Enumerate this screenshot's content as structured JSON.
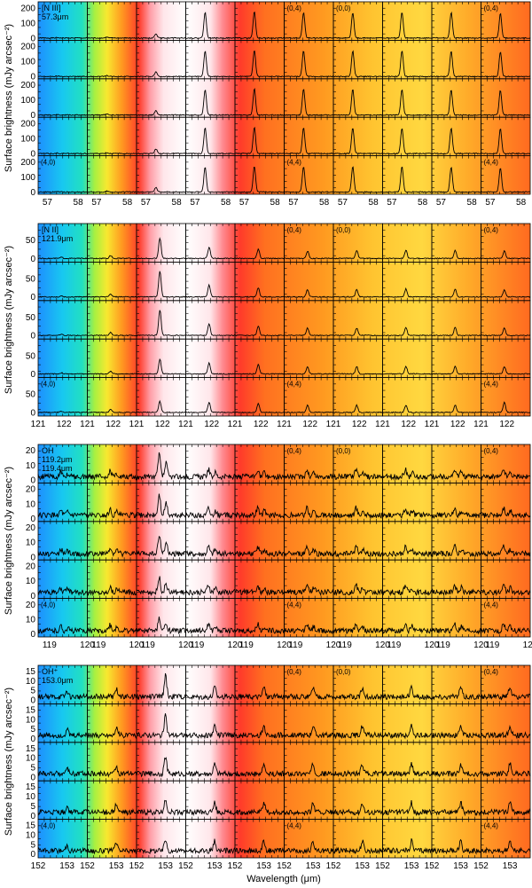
{
  "figure": {
    "ylabel": "Surface brightness (mJy arcsec⁻²)",
    "xlabel": "Wavelength (μm)",
    "grid_rows": 5,
    "grid_cols": 10,
    "spaxel_labels": {
      "r0c5": "(0,4)",
      "r0c6": "(0,0)",
      "r0c9": "(0,4)",
      "r4c0": "(4,0)",
      "r4c5": "(4,4)",
      "r4c9": "(4,4)"
    },
    "colormap": "rainbow background (blue-cyan at left, white-pink highlight near column 3, orange-yellow elsewhere)"
  },
  "chart_data": [
    {
      "type": "line",
      "line_label": "[N III]",
      "wavelength_label": "57.3μm",
      "line_center": 57.33,
      "xlim": [
        56.7,
        58.3
      ],
      "xticks": [
        57,
        58
      ],
      "ylim": [
        -15,
        240
      ],
      "yticks": [
        0,
        100,
        200
      ],
      "peak_values": [
        [
          3,
          6,
          30,
          170,
          175,
          170,
          168,
          172,
          170,
          165
        ],
        [
          3,
          6,
          30,
          170,
          175,
          172,
          170,
          170,
          168,
          165
        ],
        [
          3,
          6,
          30,
          170,
          175,
          172,
          170,
          170,
          168,
          165
        ],
        [
          3,
          6,
          30,
          170,
          175,
          172,
          170,
          170,
          168,
          165
        ],
        [
          3,
          6,
          30,
          165,
          170,
          170,
          168,
          168,
          166,
          160
        ]
      ]
    },
    {
      "type": "line",
      "line_label": "[N II]",
      "wavelength_label": "121.9μm",
      "line_center": 121.9,
      "xlim": [
        121.0,
        122.9
      ],
      "xticks": [
        121,
        122
      ],
      "ylim": [
        -10,
        95
      ],
      "yticks": [
        0,
        50
      ],
      "peak_values": [
        [
          3,
          8,
          55,
          30,
          25,
          20,
          22,
          22,
          22,
          20
        ],
        [
          3,
          8,
          70,
          32,
          25,
          20,
          20,
          22,
          22,
          20
        ],
        [
          3,
          8,
          70,
          32,
          25,
          20,
          20,
          22,
          22,
          20
        ],
        [
          3,
          8,
          40,
          30,
          25,
          20,
          20,
          20,
          20,
          20
        ],
        [
          3,
          8,
          30,
          28,
          25,
          20,
          20,
          20,
          20,
          28
        ]
      ]
    },
    {
      "type": "line",
      "line_label": "OH",
      "wavelength_label": "119.2μm",
      "wavelength_label_2": "119.4μm",
      "line_center": 119.3,
      "xlim": [
        118.7,
        120.0
      ],
      "xticks": [
        119,
        120
      ],
      "ylim": [
        -2,
        24
      ],
      "yticks": [
        0,
        10,
        20
      ],
      "peak_values": [
        [
          3,
          4,
          15,
          5,
          5,
          5,
          5,
          5,
          5,
          5
        ],
        [
          3,
          4,
          14,
          5,
          5,
          5,
          5,
          5,
          5,
          5
        ],
        [
          3,
          4,
          12,
          5,
          5,
          5,
          5,
          5,
          5,
          5
        ],
        [
          3,
          4,
          10,
          5,
          5,
          5,
          5,
          5,
          5,
          5
        ],
        [
          3,
          4,
          8,
          5,
          5,
          5,
          5,
          5,
          5,
          5
        ]
      ]
    },
    {
      "type": "line",
      "line_label": "OH⁺",
      "wavelength_label": "153.0μm",
      "line_center": 153.0,
      "xlim": [
        152.0,
        153.7
      ],
      "xticks": [
        152,
        153
      ],
      "ylim": [
        -2,
        18
      ],
      "yticks": [
        0,
        5,
        10,
        15
      ],
      "peak_values": [
        [
          3,
          4,
          11,
          5,
          5,
          5,
          5,
          5,
          5,
          5
        ],
        [
          3,
          4,
          10,
          5,
          5,
          5,
          5,
          5,
          5,
          5
        ],
        [
          3,
          4,
          9,
          5,
          5,
          5,
          5,
          5,
          5,
          5
        ],
        [
          3,
          4,
          7,
          5,
          5,
          5,
          5,
          5,
          5,
          5
        ],
        [
          3,
          4,
          6,
          5,
          5,
          5,
          5,
          5,
          5,
          5
        ]
      ]
    }
  ]
}
